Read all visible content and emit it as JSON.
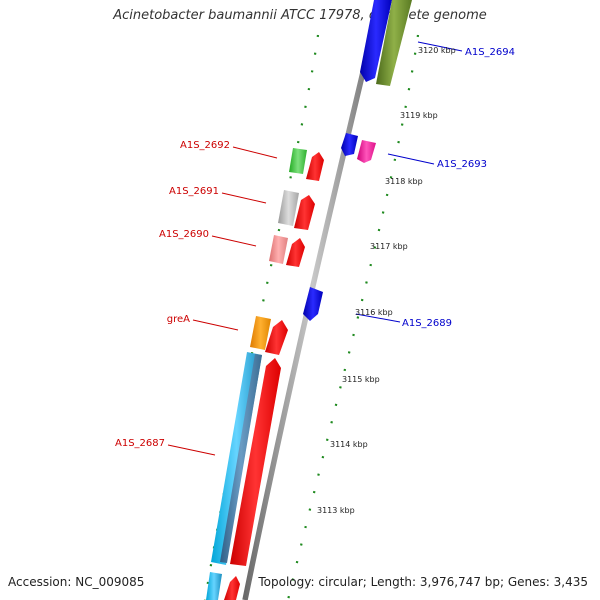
{
  "title": "Acinetobacter baumannii ATCC 17978, complete genome",
  "accession_text": "Accession: NC_009085",
  "summary_text": "Topology: circular; Length: 3,976,747 bp; Genes: 3,435",
  "colors": {
    "backbone": "#8c8c8c",
    "dots": "#1f8a1f",
    "red_label": "#cc0000",
    "blue_label": "#0000cc"
  },
  "ticks": [
    {
      "label": "3120 kbp"
    },
    {
      "label": "3119 kbp"
    },
    {
      "label": "3118 kbp"
    },
    {
      "label": "3117 kbp"
    },
    {
      "label": "3116 kbp"
    },
    {
      "label": "3115 kbp"
    },
    {
      "label": "3114 kbp"
    },
    {
      "label": "3113 kbp"
    }
  ],
  "gene_labels": [
    {
      "name": "A1S_2694",
      "color": "blue"
    },
    {
      "name": "A1S_2693",
      "color": "blue"
    },
    {
      "name": "A1S_2689",
      "color": "blue"
    },
    {
      "name": "A1S_2692",
      "color": "red"
    },
    {
      "name": "A1S_2691",
      "color": "red"
    },
    {
      "name": "A1S_2690",
      "color": "red"
    },
    {
      "name": "greA",
      "color": "red"
    },
    {
      "name": "A1S_2687",
      "color": "red"
    }
  ]
}
